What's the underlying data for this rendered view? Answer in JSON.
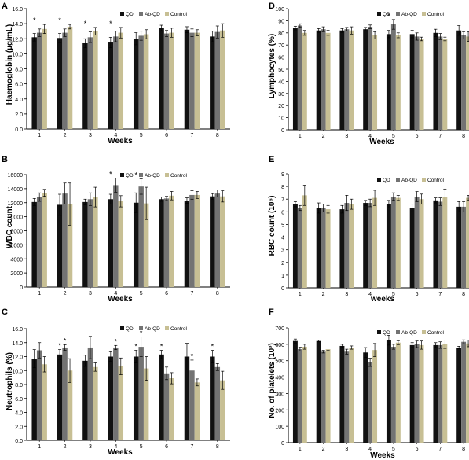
{
  "colors": {
    "QD": "#111111",
    "Ab-QD": "#737373",
    "Control": "#c7bf94"
  },
  "chart_data": [
    {
      "panel": "A",
      "type": "bar",
      "ylabel": "Haemoglobin (µg/mL)",
      "xlabel": "Weeks",
      "categories": [
        "1",
        "2",
        "3",
        "4",
        "5",
        "6",
        "7",
        "8"
      ],
      "ylim": [
        0,
        16
      ],
      "yticks": [
        "0.0",
        "2.0",
        "4.0",
        "6.0",
        "8.0",
        "10.0",
        "12.0",
        "14.0",
        "16.0"
      ],
      "legend": [
        "QD",
        "Ab-QD",
        "Control"
      ],
      "legend_position": "top-right",
      "series": [
        {
          "name": "QD",
          "values": [
            12.2,
            12.1,
            11.4,
            11.5,
            12.0,
            13.4,
            13.2,
            12.3
          ]
        },
        {
          "name": "Ab-QD",
          "values": [
            12.8,
            12.8,
            12.2,
            12.3,
            12.4,
            12.7,
            12.8,
            12.9
          ]
        },
        {
          "name": "Control",
          "values": [
            13.3,
            13.6,
            13.0,
            12.8,
            12.6,
            12.8,
            12.8,
            13.1
          ]
        }
      ],
      "errors": [
        [
          0.5,
          0.6,
          0.6,
          0.7,
          0.8,
          0.4,
          0.4,
          0.7
        ],
        [
          0.5,
          0.5,
          0.7,
          0.7,
          0.6,
          0.4,
          0.5,
          0.8
        ],
        [
          0.6,
          0.3,
          0.5,
          0.7,
          0.6,
          0.6,
          0.4,
          0.9
        ]
      ],
      "stars": [
        1,
        2,
        3,
        4
      ]
    },
    {
      "panel": "B",
      "type": "bar",
      "ylabel": "WBC count",
      "xlabel": "Weeks",
      "categories": [
        "1",
        "2",
        "3",
        "4",
        "5",
        "6",
        "7",
        "8"
      ],
      "ylim": [
        0,
        16000
      ],
      "yticks": [
        "0",
        "2000",
        "4000",
        "6000",
        "8000",
        "10000",
        "12000",
        "14000",
        "16000"
      ],
      "legend": [
        "QD",
        "Ab-QD",
        "Control"
      ],
      "legend_position": "top-right",
      "series": [
        {
          "name": "QD",
          "values": [
            12100,
            11700,
            12100,
            12500,
            12000,
            12500,
            12300,
            12900
          ]
        },
        {
          "name": "Ab-QD",
          "values": [
            12800,
            13300,
            12500,
            14500,
            14300,
            12600,
            13100,
            13300
          ]
        },
        {
          "name": "Control",
          "values": [
            13400,
            11800,
            12800,
            12200,
            11900,
            13000,
            13100,
            12900
          ]
        }
      ],
      "errors": [
        [
          500,
          1500,
          400,
          700,
          1400,
          300,
          400,
          400
        ],
        [
          600,
          1500,
          900,
          1000,
          1100,
          300,
          600,
          500
        ],
        [
          500,
          3000,
          1400,
          800,
          2300,
          600,
          500,
          800
        ]
      ],
      "stars": [
        4,
        5
      ]
    },
    {
      "panel": "C",
      "type": "bar",
      "ylabel": "Neutrophils (%)",
      "xlabel": "Weeks",
      "categories": [
        "1",
        "2",
        "3",
        "4",
        "5",
        "6",
        "7",
        "8"
      ],
      "ylim": [
        0,
        16
      ],
      "yticks": [
        "0.0",
        "2.0",
        "4.0",
        "6.0",
        "8.0",
        "10.0",
        "12.0",
        "14.0",
        "16.0"
      ],
      "legend": [
        "QD",
        "Ab-QD",
        "Control"
      ],
      "legend_position": "top-right",
      "series": [
        {
          "name": "QD",
          "values": [
            11.7,
            12.3,
            11.4,
            12.0,
            12.0,
            12.3,
            12.0,
            12.0
          ]
        },
        {
          "name": "Ab-QD",
          "values": [
            12.9,
            13.3,
            13.3,
            13.3,
            13.4,
            9.6,
            10.0,
            10.5
          ]
        },
        {
          "name": "Control",
          "values": [
            10.9,
            10.0,
            10.5,
            10.6,
            10.3,
            8.9,
            8.3,
            8.6
          ]
        }
      ],
      "errors": [
        [
          1.3,
          0.7,
          0.8,
          0.7,
          0.9,
          0.6,
          1.9,
          0.9
        ],
        [
          1.1,
          0.4,
          1.6,
          0.3,
          1.4,
          0.9,
          1.5,
          0.5
        ],
        [
          1.1,
          1.7,
          0.6,
          1.2,
          1.7,
          0.8,
          0.5,
          1.3
        ]
      ],
      "stars_pos": [
        [
          2,
          0
        ],
        [
          2,
          1
        ],
        [
          4,
          1
        ],
        [
          5,
          0
        ],
        [
          5,
          1
        ],
        [
          6,
          0
        ],
        [
          7,
          1
        ],
        [
          8,
          0
        ]
      ]
    },
    {
      "panel": "D",
      "type": "bar",
      "ylabel": "Lymphocytes (%)",
      "xlabel": "Weeks",
      "categories": [
        "1",
        "2",
        "3",
        "4",
        "5",
        "6",
        "7",
        "8"
      ],
      "ylim": [
        0,
        100
      ],
      "yticks": [
        "0",
        "10",
        "20",
        "30",
        "40",
        "50",
        "60",
        "70",
        "80",
        "90",
        "100"
      ],
      "legend": [
        "QD",
        "Ab-QD",
        "Control"
      ],
      "legend_position": "top-right",
      "series": [
        {
          "name": "QD",
          "values": [
            84,
            82,
            82,
            83,
            79,
            79,
            80,
            82
          ]
        },
        {
          "name": "Ab-QD",
          "values": [
            86,
            83,
            83,
            85,
            87,
            77,
            77,
            78
          ]
        },
        {
          "name": "Control",
          "values": [
            80,
            80,
            82,
            78,
            78,
            75,
            75,
            77
          ]
        }
      ],
      "errors": [
        [
          1.5,
          1.5,
          1.5,
          1.5,
          3,
          3,
          3,
          4
        ],
        [
          1.5,
          2,
          1.5,
          1.5,
          4,
          3,
          2.5,
          3
        ],
        [
          2,
          2,
          3,
          3,
          2,
          1.5,
          1.5,
          4
        ]
      ],
      "stars": [
        5
      ]
    },
    {
      "panel": "E",
      "type": "bar",
      "ylabel": "RBC count (10⁶)",
      "xlabel": "weeks",
      "categories": [
        "1",
        "2",
        "3",
        "4",
        "5",
        "6",
        "7",
        "8"
      ],
      "ylim": [
        0,
        9
      ],
      "yticks": [
        "0",
        "1",
        "2",
        "3",
        "4",
        "5",
        "6",
        "7",
        "8",
        "9"
      ],
      "legend": [
        "QD",
        "Ab-QD",
        "Control"
      ],
      "legend_position": "top-right",
      "series": [
        {
          "name": "QD",
          "values": [
            6.6,
            6.3,
            6.2,
            6.7,
            6.6,
            6.3,
            6.9,
            6.4
          ]
        },
        {
          "name": "Ab-QD",
          "values": [
            6.3,
            6.3,
            6.7,
            6.7,
            7.2,
            7.2,
            6.8,
            6.4
          ]
        },
        {
          "name": "Control",
          "values": [
            7.3,
            6.2,
            6.6,
            7.1,
            7.1,
            7.0,
            7.2,
            7.1
          ]
        }
      ],
      "errors": [
        [
          0.2,
          0.4,
          0.3,
          0.2,
          0.3,
          0.3,
          0.2,
          0.4
        ],
        [
          0.2,
          0.3,
          0.6,
          0.3,
          0.3,
          0.4,
          0.3,
          0.4
        ],
        [
          0.8,
          0.3,
          0.4,
          0.6,
          0.2,
          0.4,
          0.6,
          0.2
        ]
      ]
    },
    {
      "panel": "F",
      "type": "bar",
      "ylabel": "No. of platelets (10³)",
      "xlabel": "Weeks",
      "categories": [
        "1",
        "2",
        "3",
        "4",
        "5",
        "6",
        "7",
        "8"
      ],
      "ylim": [
        0,
        700
      ],
      "yticks": [
        "0",
        "100",
        "200",
        "300",
        "400",
        "500",
        "600",
        "700"
      ],
      "legend": [
        "QD",
        "Ab-QD",
        "Control"
      ],
      "legend_position": "top-right",
      "series": [
        {
          "name": "QD",
          "values": [
            620,
            620,
            590,
            550,
            625,
            595,
            595,
            580
          ]
        },
        {
          "name": "Ab-QD",
          "values": [
            570,
            555,
            555,
            490,
            585,
            600,
            595,
            615
          ]
        },
        {
          "name": "Control",
          "values": [
            585,
            570,
            580,
            565,
            610,
            595,
            600,
            605
          ]
        }
      ],
      "errors": [
        [
          12,
          5,
          10,
          30,
          30,
          15,
          15,
          8
        ],
        [
          12,
          8,
          15,
          25,
          15,
          20,
          20,
          12
        ],
        [
          15,
          8,
          10,
          40,
          12,
          25,
          25,
          20
        ]
      ]
    }
  ]
}
